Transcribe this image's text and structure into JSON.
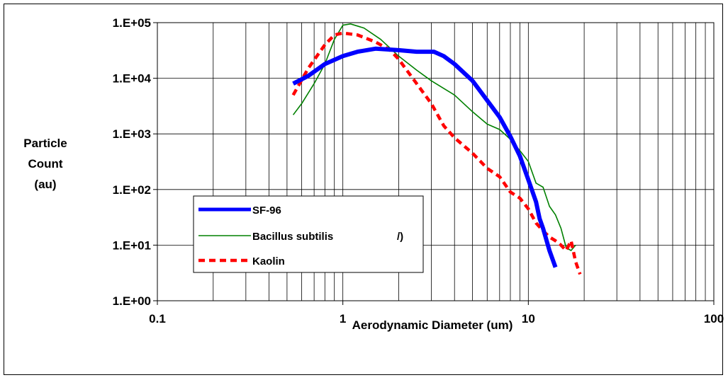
{
  "chart_data": {
    "type": "line",
    "xlabel": "Aerodynamic Diameter (um)",
    "ylabel": [
      "Particle",
      "Count",
      "(au)"
    ],
    "x_scale": "log",
    "y_scale": "log",
    "xlim": [
      0.1,
      100
    ],
    "ylim": [
      1,
      100000
    ],
    "x_tick_labels": [
      {
        "value": 0.1,
        "label": "0.1"
      },
      {
        "value": 1,
        "label": "1"
      },
      {
        "value": 10,
        "label": "10"
      },
      {
        "value": 100,
        "label": "100"
      }
    ],
    "y_tick_labels": [
      {
        "value": 1,
        "label": "1.E+00"
      },
      {
        "value": 10,
        "label": "1.E+01"
      },
      {
        "value": 100,
        "label": "1.E+02"
      },
      {
        "value": 1000,
        "label": "1.E+03"
      },
      {
        "value": 10000,
        "label": "1.E+04"
      },
      {
        "value": 100000,
        "label": "1.E+05"
      }
    ],
    "grid": true,
    "legend_position": "lower-left",
    "series": [
      {
        "name": "SF-96",
        "color": "#0000ff",
        "style": "solid-thick",
        "points": [
          [
            0.54,
            8000
          ],
          [
            0.65,
            11000
          ],
          [
            0.8,
            18000
          ],
          [
            1.0,
            25000
          ],
          [
            1.2,
            30000
          ],
          [
            1.5,
            34000
          ],
          [
            2.0,
            32000
          ],
          [
            2.5,
            30000
          ],
          [
            3.1,
            30000
          ],
          [
            3.5,
            25000
          ],
          [
            4.0,
            18000
          ],
          [
            5.0,
            9000
          ],
          [
            6.0,
            4000
          ],
          [
            7.0,
            2000
          ],
          [
            8.0,
            900
          ],
          [
            9.0,
            400
          ],
          [
            10.0,
            150
          ],
          [
            11.0,
            60
          ],
          [
            11.5,
            30
          ],
          [
            12.0,
            20
          ],
          [
            13.0,
            8
          ],
          [
            14.0,
            4
          ]
        ]
      },
      {
        "name": "Bacillus subtilis",
        "color": "#008000",
        "style": "solid-thin",
        "points": [
          [
            0.54,
            2200
          ],
          [
            0.6,
            3500
          ],
          [
            0.7,
            8000
          ],
          [
            0.8,
            18000
          ],
          [
            0.9,
            50000
          ],
          [
            1.0,
            90000
          ],
          [
            1.1,
            95000
          ],
          [
            1.3,
            80000
          ],
          [
            1.6,
            50000
          ],
          [
            2.0,
            25000
          ],
          [
            2.5,
            14000
          ],
          [
            3.0,
            9000
          ],
          [
            4.0,
            5000
          ],
          [
            5.0,
            2500
          ],
          [
            6.0,
            1500
          ],
          [
            7.0,
            1200
          ],
          [
            8.0,
            800
          ],
          [
            9.0,
            500
          ],
          [
            10.0,
            320
          ],
          [
            11.0,
            130
          ],
          [
            12.0,
            110
          ],
          [
            13.0,
            50
          ],
          [
            14.0,
            35
          ],
          [
            15.0,
            20
          ],
          [
            16.0,
            9
          ],
          [
            17.0,
            8
          ],
          [
            18.0,
            10
          ]
        ]
      },
      {
        "name": "Kaolin",
        "color": "#ff0000",
        "style": "dashed-thick",
        "points": [
          [
            0.54,
            5000
          ],
          [
            0.65,
            15000
          ],
          [
            0.8,
            40000
          ],
          [
            0.9,
            60000
          ],
          [
            1.0,
            65000
          ],
          [
            1.2,
            60000
          ],
          [
            1.5,
            45000
          ],
          [
            1.8,
            32000
          ],
          [
            2.0,
            22000
          ],
          [
            2.5,
            8000
          ],
          [
            3.0,
            3500
          ],
          [
            3.5,
            1400
          ],
          [
            4.0,
            850
          ],
          [
            5.0,
            450
          ],
          [
            6.0,
            240
          ],
          [
            7.0,
            170
          ],
          [
            8.0,
            90
          ],
          [
            9.0,
            70
          ],
          [
            10.0,
            45
          ],
          [
            11.0,
            25
          ],
          [
            12.0,
            18
          ],
          [
            13.0,
            14
          ],
          [
            14.0,
            12
          ],
          [
            15.0,
            10
          ],
          [
            16.0,
            8
          ],
          [
            17.0,
            12
          ],
          [
            18.0,
            5
          ],
          [
            19.0,
            3
          ]
        ]
      }
    ],
    "legend_obscured_text": "/)"
  }
}
